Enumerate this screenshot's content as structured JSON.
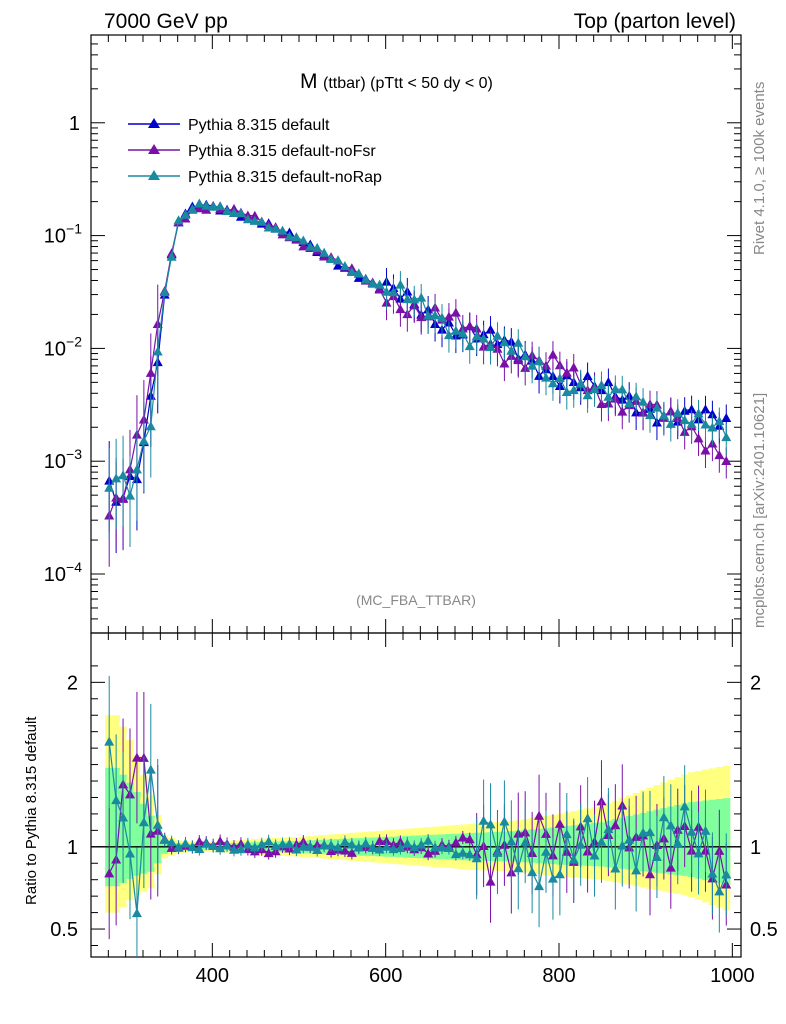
{
  "header": {
    "left_label": "7000 GeV pp",
    "right_label": "Top (parton level)"
  },
  "side_labels": {
    "rivet": "Rivet 4.1.0, ≥ 100k events",
    "mcplots": "mcplots.cern.ch [arXiv:2401.10621]"
  },
  "chart_data": [
    {
      "type": "line",
      "panel": "main",
      "title_main": "M",
      "title_sub": "(ttbar) (pTtt < 50 dy < 0)",
      "analysis_label": "(MC_FBA_TTBAR)",
      "yscale": "log",
      "xlim": [
        260,
        1010
      ],
      "ylim": [
        3e-05,
        6
      ],
      "yticks": [
        {
          "v": 0.0001,
          "base": "10",
          "exp": "−4"
        },
        {
          "v": 0.001,
          "base": "10",
          "exp": "−3"
        },
        {
          "v": 0.01,
          "base": "10",
          "exp": "−2"
        },
        {
          "v": 0.1,
          "base": "10",
          "exp": "−1"
        },
        {
          "v": 1,
          "base": "1",
          "exp": ""
        }
      ],
      "legend": [
        {
          "name": "Pythia 8.315 default",
          "color": "#0000cc"
        },
        {
          "name": "Pythia 8.315 default-noFsr",
          "color": "#7a10a8"
        },
        {
          "name": "Pythia 8.315 default-noRap",
          "color": "#1a8aa0"
        }
      ],
      "x": [
        290,
        310,
        330,
        345,
        360,
        380,
        400,
        430,
        460,
        500,
        550,
        600,
        650,
        700,
        750,
        800,
        850,
        900,
        950,
        1000
      ],
      "series": [
        {
          "name": "Pythia 8.315 default",
          "color": "#0000cc",
          "values": [
            0.0005,
            0.0008,
            0.004,
            0.03,
            0.13,
            0.18,
            0.18,
            0.16,
            0.13,
            0.09,
            0.055,
            0.032,
            0.02,
            0.014,
            0.009,
            0.006,
            0.004,
            0.003,
            0.0025,
            0.002
          ]
        },
        {
          "name": "Pythia 8.315 default-noFsr",
          "color": "#7a10a8",
          "values": [
            0.0004,
            0.0009,
            0.005,
            0.033,
            0.13,
            0.18,
            0.18,
            0.16,
            0.13,
            0.09,
            0.055,
            0.031,
            0.02,
            0.014,
            0.0085,
            0.0065,
            0.004,
            0.0028,
            0.002,
            0.0011
          ]
        },
        {
          "name": "Pythia 8.315 default-noRap",
          "color": "#1a8aa0",
          "values": [
            0.0006,
            0.0007,
            0.0035,
            0.032,
            0.13,
            0.18,
            0.18,
            0.16,
            0.13,
            0.09,
            0.057,
            0.033,
            0.021,
            0.013,
            0.009,
            0.0055,
            0.0038,
            0.0033,
            0.0024,
            0.0015
          ]
        }
      ]
    },
    {
      "type": "line",
      "panel": "ratio",
      "ylabel": "Ratio to Pythia 8.315 default",
      "xlim": [
        260,
        1010
      ],
      "ylim": [
        0.33,
        2.3
      ],
      "xticks": [
        400,
        600,
        800,
        1000
      ],
      "yticks": [
        {
          "v": 0.5,
          "label": "0.5"
        },
        {
          "v": 1,
          "label": "1"
        },
        {
          "v": 2,
          "label": "2"
        }
      ],
      "x": [
        290,
        310,
        330,
        345,
        360,
        380,
        400,
        430,
        460,
        500,
        550,
        600,
        650,
        700,
        750,
        800,
        850,
        900,
        950,
        1000
      ],
      "band_outer": [
        0.6,
        0.7,
        0.75,
        0.93,
        0.96,
        0.97,
        0.97,
        0.96,
        0.95,
        0.94,
        0.92,
        0.9,
        0.88,
        0.86,
        0.85,
        0.82,
        0.8,
        0.75,
        0.7,
        0.6
      ],
      "band_outer_hi": [
        1.8,
        1.6,
        1.3,
        1.07,
        1.04,
        1.03,
        1.03,
        1.04,
        1.05,
        1.06,
        1.08,
        1.1,
        1.12,
        1.14,
        1.16,
        1.2,
        1.25,
        1.35,
        1.45,
        1.5
      ],
      "series": [
        {
          "name": "Pythia 8.315 default-noFsr",
          "color": "#7a10a8",
          "values": [
            0.8,
            1.5,
            1.3,
            1.05,
            1.0,
            1.02,
            1.01,
            1.0,
            0.98,
            1.02,
            0.96,
            1.05,
            0.95,
            1.08,
            0.9,
            1.05,
            1.2,
            0.85,
            1.25,
            0.6
          ]
        },
        {
          "name": "Pythia 8.315 default-noRap",
          "color": "#1a8aa0",
          "values": [
            1.6,
            0.8,
            1.4,
            1.02,
            1.0,
            0.99,
            1.02,
            1.0,
            1.01,
            0.99,
            1.03,
            0.97,
            1.04,
            0.93,
            1.05,
            0.9,
            0.95,
            1.15,
            1.0,
            0.75
          ]
        }
      ]
    }
  ]
}
